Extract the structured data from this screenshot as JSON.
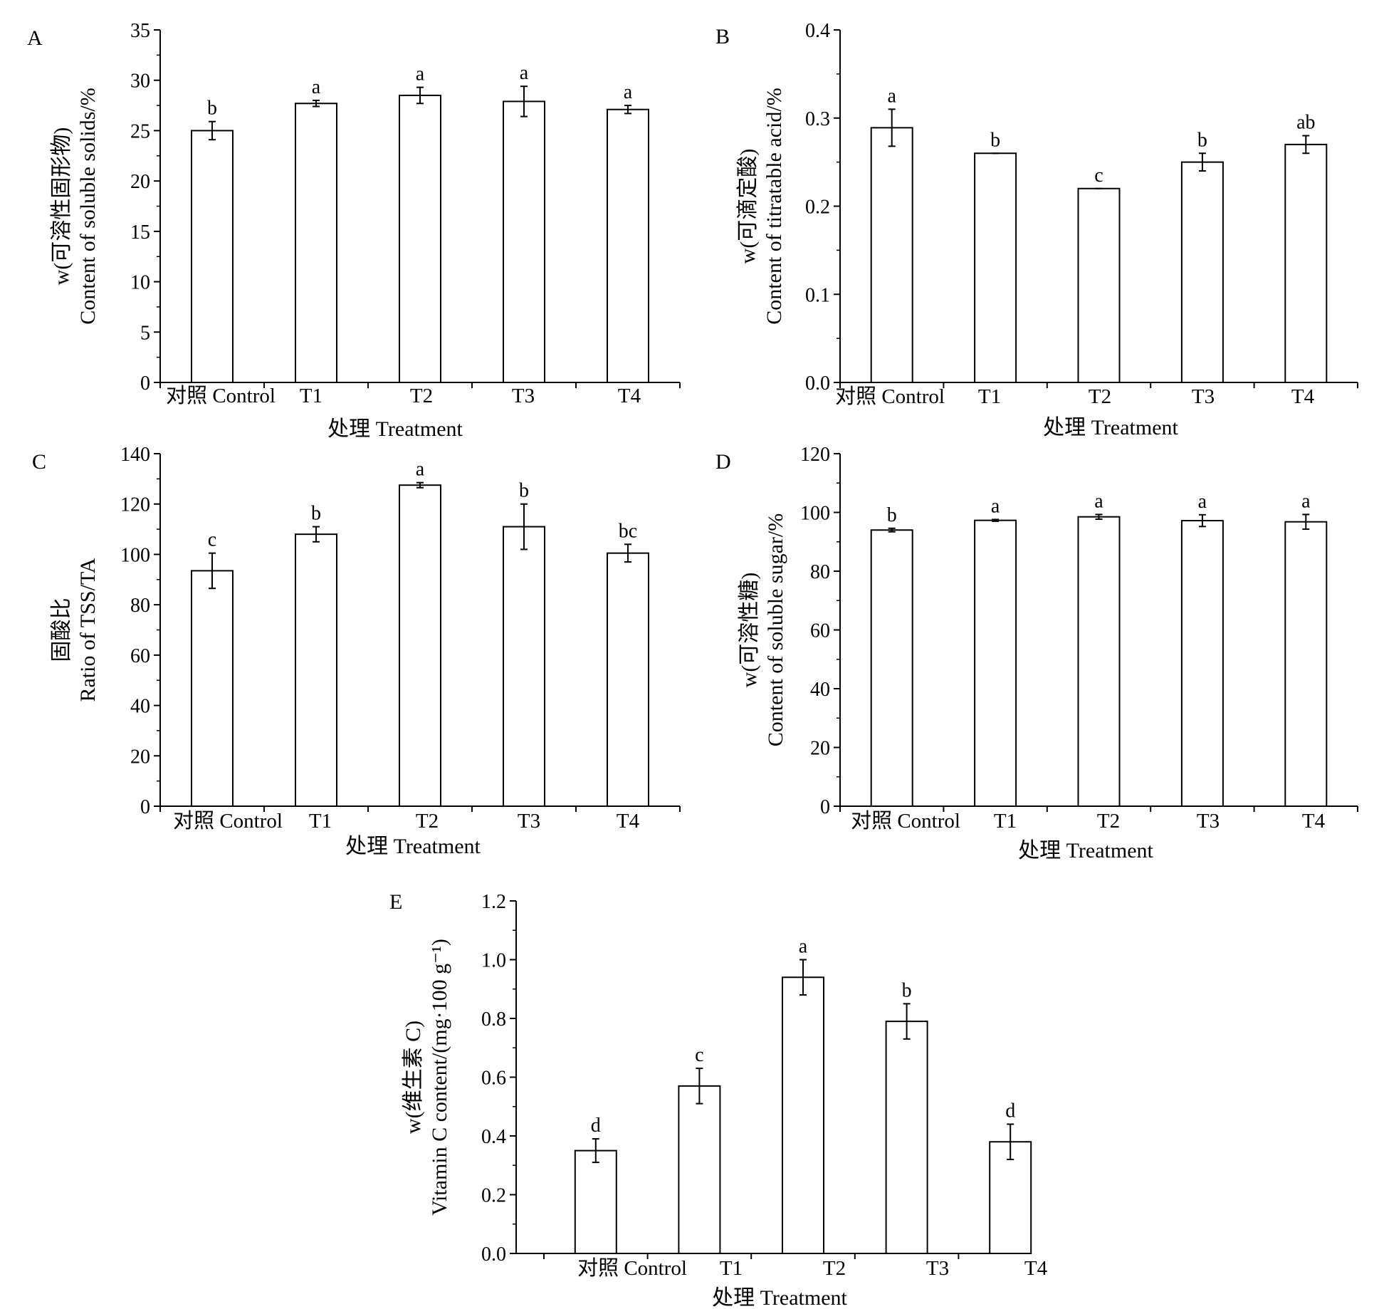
{
  "figure_title": "",
  "chart_data": [
    {
      "panel": "A",
      "type": "bar",
      "categories": [
        "对照 Control",
        "T1",
        "T2",
        "T3",
        "T4"
      ],
      "values": [
        25.0,
        27.7,
        28.5,
        27.9,
        27.1
      ],
      "errors": [
        0.9,
        0.3,
        0.8,
        1.5,
        0.4
      ],
      "significance": [
        "b",
        "a",
        "a",
        "a",
        "a"
      ],
      "xlabel": "处理 Treatment",
      "ylabel_lines": [
        "w(可溶性固形物)",
        "Content of soluble solids/%"
      ],
      "ylim": [
        0,
        35
      ],
      "yticks": [
        0,
        5,
        10,
        15,
        20,
        25,
        30,
        35
      ],
      "ytick_labels": [
        "0",
        "5",
        "10",
        "15",
        "20",
        "25",
        "30",
        "35"
      ]
    },
    {
      "panel": "B",
      "type": "bar",
      "categories": [
        "对照 Control",
        "T1",
        "T2",
        "T3",
        "T4"
      ],
      "values": [
        0.289,
        0.26,
        0.22,
        0.25,
        0.27
      ],
      "errors": [
        0.021,
        0.0,
        0.0,
        0.01,
        0.01
      ],
      "significance": [
        "a",
        "b",
        "c",
        "b",
        "ab"
      ],
      "xlabel": "处理 Treatment",
      "ylabel_lines": [
        "w(可滴定酸)",
        "Content of titratable acid/%"
      ],
      "ylim": [
        0,
        0.4
      ],
      "yticks": [
        0,
        0.1,
        0.2,
        0.3,
        0.4
      ],
      "ytick_labels": [
        "0.0",
        "0.1",
        "0.2",
        "0.3",
        "0.4"
      ]
    },
    {
      "panel": "C",
      "type": "bar",
      "categories": [
        "对照 Control",
        "T1",
        "T2",
        "T3",
        "T4"
      ],
      "values": [
        93.5,
        108.0,
        127.5,
        111.0,
        100.5
      ],
      "errors": [
        7.0,
        3.0,
        1.0,
        9.0,
        3.5
      ],
      "significance": [
        "c",
        "b",
        "a",
        "b",
        "bc"
      ],
      "xlabel": "处理 Treatment",
      "ylabel_lines": [
        "固酸比",
        "Ratio of TSS/TA"
      ],
      "ylim": [
        0,
        140
      ],
      "yticks": [
        0,
        20,
        40,
        60,
        80,
        100,
        120,
        140
      ],
      "ytick_labels": [
        "0",
        "20",
        "40",
        "60",
        "80",
        "100",
        "120",
        "140"
      ]
    },
    {
      "panel": "D",
      "type": "bar",
      "categories": [
        "对照 Control",
        "T1",
        "T2",
        "T3",
        "T4"
      ],
      "values": [
        94.0,
        97.3,
        98.5,
        97.2,
        96.8
      ],
      "errors": [
        0.6,
        0.3,
        0.8,
        2.0,
        2.5
      ],
      "significance": [
        "b",
        "a",
        "a",
        "a",
        "a"
      ],
      "xlabel": "处理 Treatment",
      "ylabel_lines": [
        "w(可溶性糖)",
        "Content of soluble sugar/%"
      ],
      "ylim": [
        0,
        120
      ],
      "yticks": [
        0,
        20,
        40,
        60,
        80,
        100,
        120
      ],
      "ytick_labels": [
        "0",
        "20",
        "40",
        "60",
        "80",
        "100",
        "120"
      ]
    },
    {
      "panel": "E",
      "type": "bar",
      "categories": [
        "对照 Control",
        "T1",
        "T2",
        "T3",
        "T4"
      ],
      "values": [
        0.35,
        0.57,
        0.94,
        0.79,
        0.38
      ],
      "errors": [
        0.04,
        0.06,
        0.06,
        0.06,
        0.06
      ],
      "significance": [
        "d",
        "c",
        "a",
        "b",
        "d"
      ],
      "xlabel": "处理 Treatment",
      "ylabel_lines": [
        "w(维生素 C)",
        "Vitamin C content/(mg·100 g⁻¹)"
      ],
      "ylim": [
        0,
        1.2
      ],
      "yticks": [
        0,
        0.2,
        0.4,
        0.6,
        0.8,
        1.0,
        1.2
      ],
      "ytick_labels": [
        "0.0",
        "0.2",
        "0.4",
        "0.6",
        "0.8",
        "1.0",
        "1.2"
      ]
    }
  ]
}
